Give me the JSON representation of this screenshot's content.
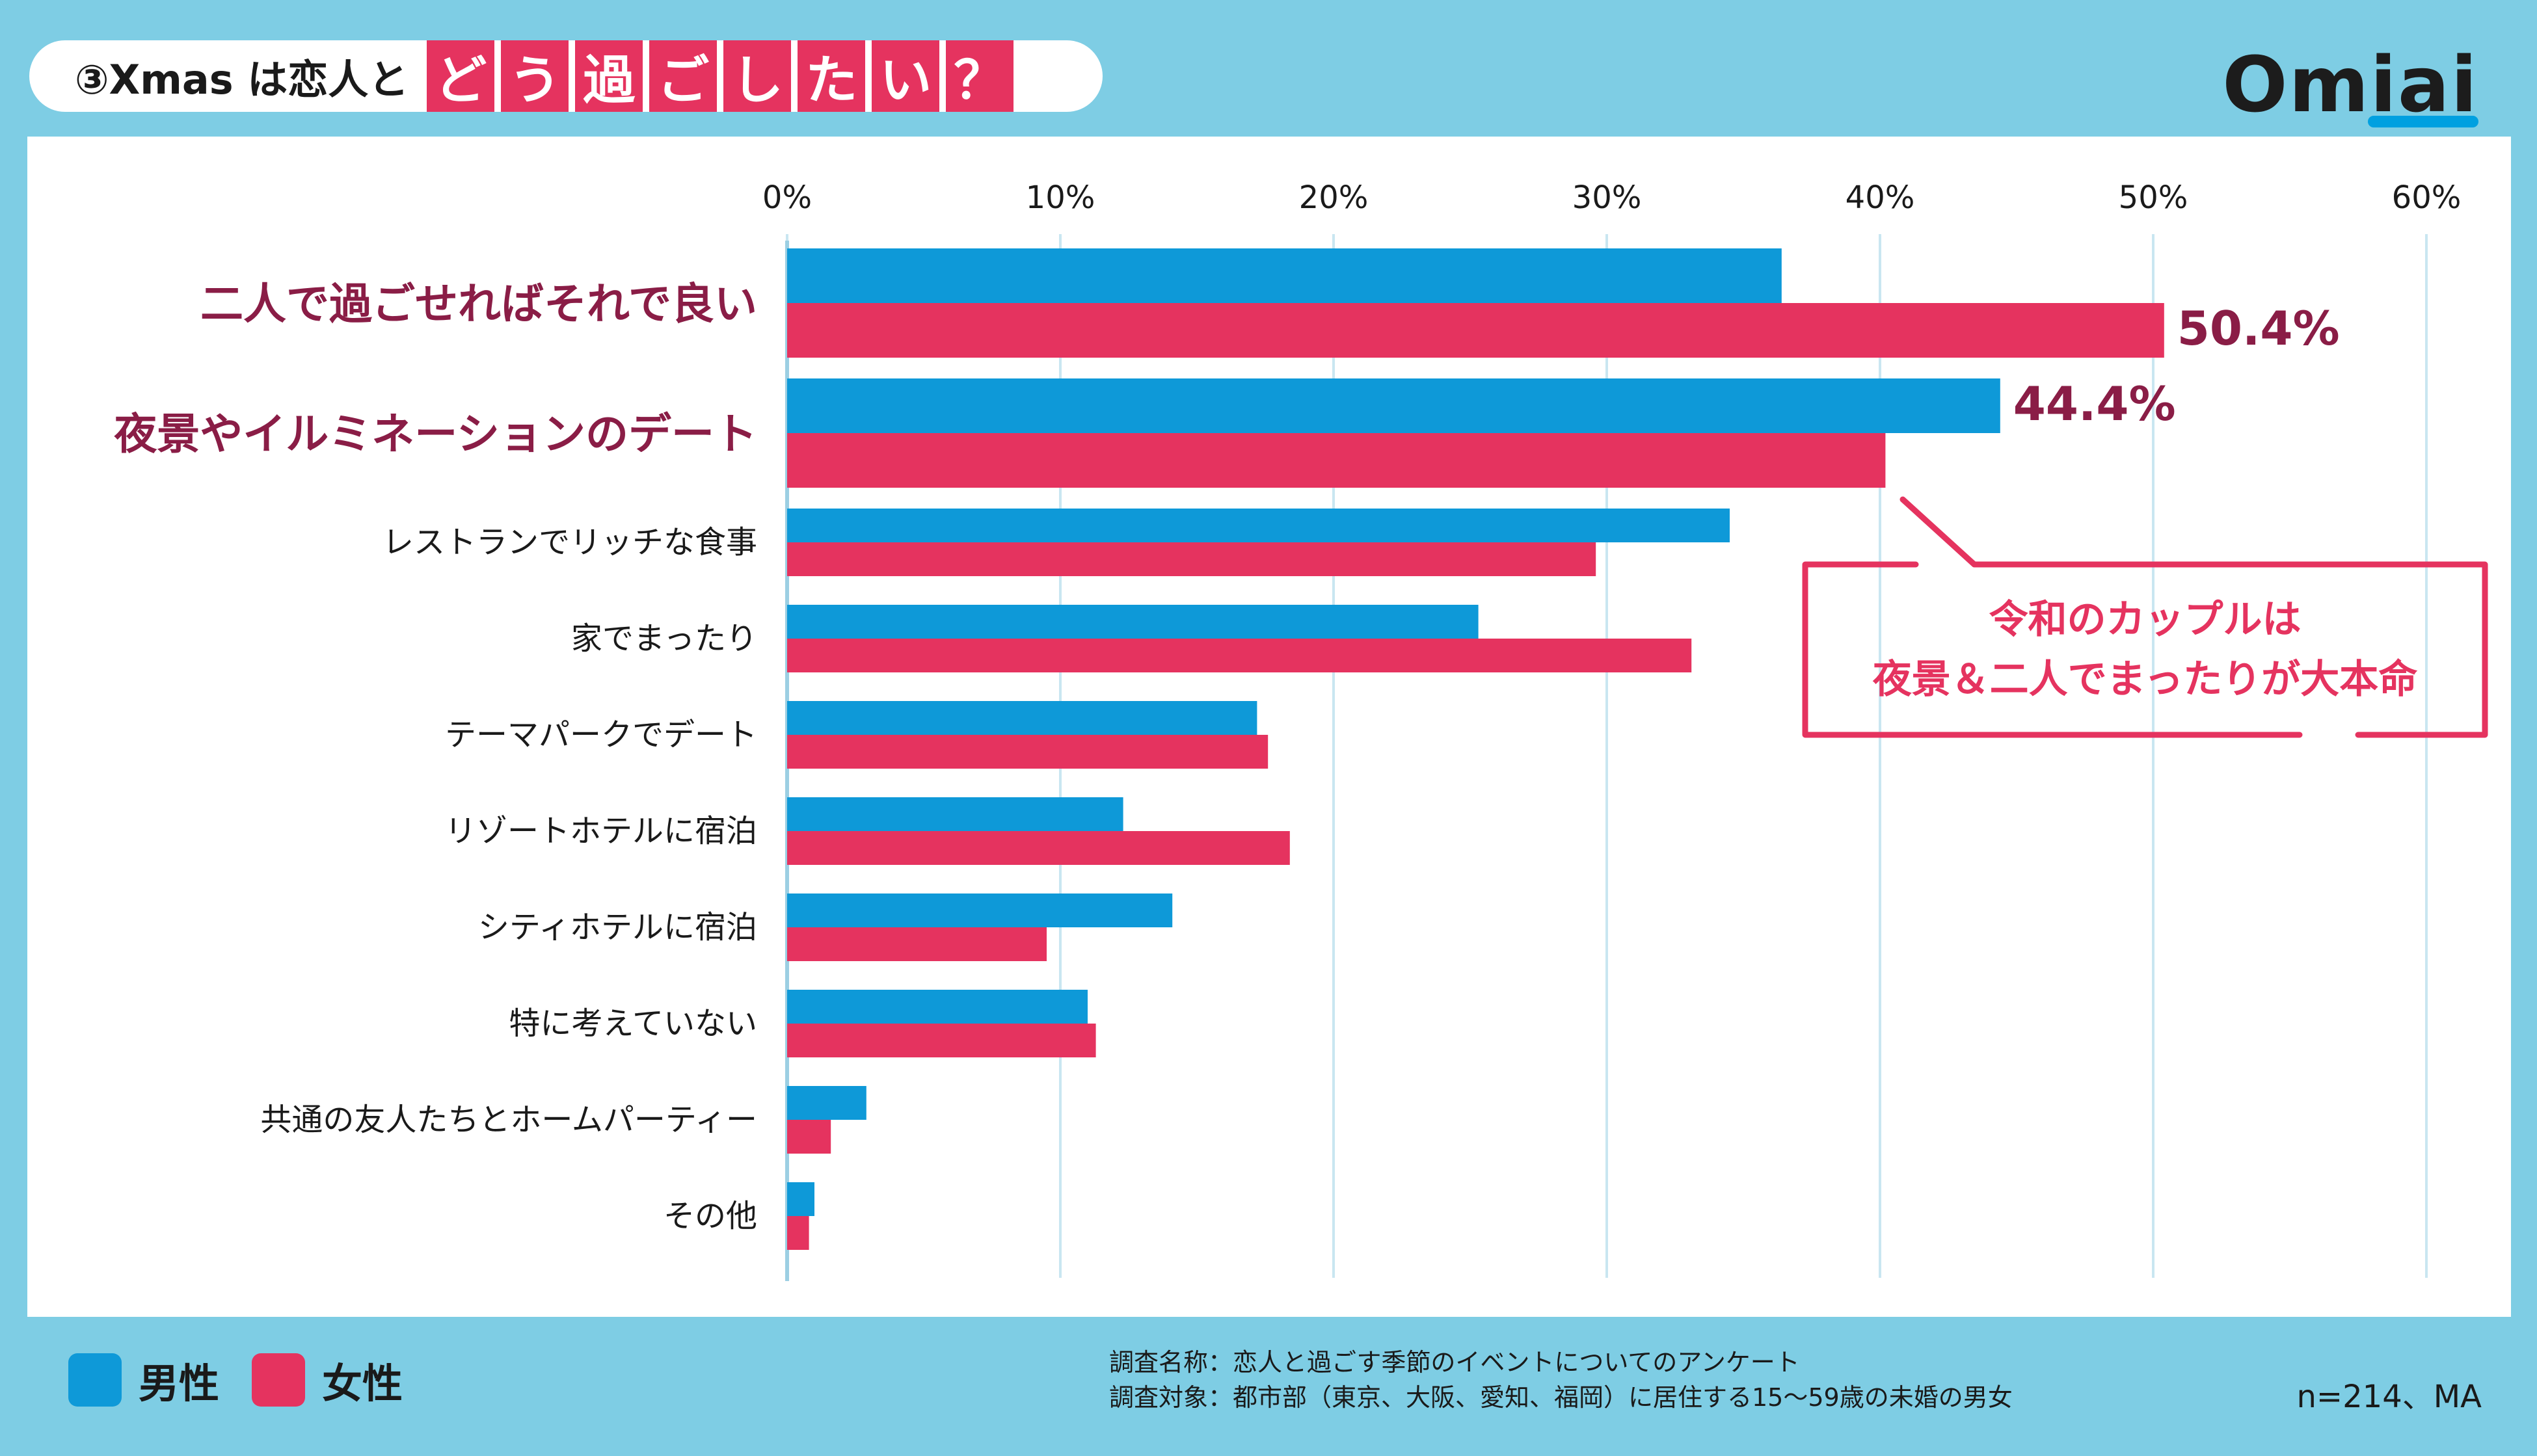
{
  "title": {
    "prefix": "③Xmas は恋人と",
    "tiles": [
      "ど",
      "う",
      "過",
      "ご",
      "し",
      "た",
      "い",
      "？"
    ]
  },
  "logo": "Omiai",
  "colors": {
    "male": "#0e99d8",
    "female": "#e5335f",
    "highlight_label": "#8a1d46",
    "background": "#7ecde4",
    "grid": "#c9e6f1"
  },
  "chart_data": {
    "type": "bar",
    "orientation": "horizontal",
    "title": "③Xmas は恋人とどう過ごしたい？",
    "categories": [
      "二人で過ごせればそれで良い",
      "夜景やイルミネーションのデート",
      "レストランでリッチな食事",
      "家でまったり",
      "テーマパークでデート",
      "リゾートホテルに宿泊",
      "シティホテルに宿泊",
      "特に考えていない",
      "共通の友人たちとホームパーティー",
      "その他"
    ],
    "highlighted_categories": [
      0,
      1
    ],
    "series": [
      {
        "name": "男性",
        "color": "#0e99d8",
        "values": [
          36.4,
          44.4,
          34.5,
          25.3,
          17.2,
          12.3,
          14.1,
          11.0,
          2.9,
          1.0
        ]
      },
      {
        "name": "女性",
        "color": "#e5335f",
        "values": [
          50.4,
          40.2,
          29.6,
          33.1,
          17.6,
          18.4,
          9.5,
          11.3,
          1.6,
          0.8
        ]
      }
    ],
    "xlim": [
      0,
      60
    ],
    "xticks": [
      0,
      10,
      20,
      30,
      40,
      50,
      60
    ],
    "tick_labels": [
      "0%",
      "10%",
      "20%",
      "30%",
      "40%",
      "50%",
      "60%"
    ],
    "data_labels": [
      {
        "text": "50.4%",
        "series": 1,
        "category": 0
      },
      {
        "text": "44.4%",
        "series": 0,
        "category": 1
      }
    ],
    "annotation": {
      "lines": [
        "令和のカップルは",
        "夜景＆二人でまったりが大本命"
      ]
    },
    "legend": [
      "男性",
      "女性"
    ],
    "legend_position": "bottom-left",
    "grid": true
  },
  "footer": {
    "survey_name": "調査名称：恋人と過ごす季節のイベントについてのアンケート",
    "survey_target": "調査対象：都市部（東京、大阪、愛知、福岡）に居住する15〜59歳の未婚の男女",
    "sample": "n=214、MA"
  }
}
